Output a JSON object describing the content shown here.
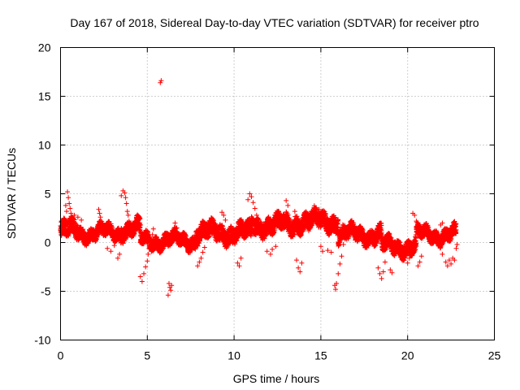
{
  "chart_data": {
    "type": "scatter",
    "title": "Day 167 of 2018, Sidereal Day-to-day VTEC variation (SDTVAR) for receiver ptro",
    "xlabel": "GPS time / hours",
    "ylabel": "SDTVAR / TECUs",
    "xlim": [
      0,
      25
    ],
    "ylim": [
      -10,
      20
    ],
    "xticks": [
      0,
      5,
      10,
      15,
      20,
      25
    ],
    "yticks": [
      -10,
      -5,
      0,
      5,
      10,
      15,
      20
    ],
    "xtick_labels": [
      "0",
      "5",
      "10",
      "15",
      "20",
      "25"
    ],
    "ytick_labels": [
      "-10",
      "-5",
      "0",
      "5",
      "10",
      "15",
      "20"
    ],
    "grid": true,
    "marker": "+",
    "series": [
      {
        "name": "SDTVAR",
        "color": "#ff0000",
        "bands": [
          {
            "x_start": 0.0,
            "x_end": 1.0,
            "center": 1.2,
            "spread": 1.6
          },
          {
            "x_start": 1.0,
            "x_end": 3.5,
            "center": 1.0,
            "spread": 1.2
          },
          {
            "x_start": 3.5,
            "x_end": 4.6,
            "center": 1.4,
            "spread": 1.4
          },
          {
            "x_start": 4.6,
            "x_end": 7.8,
            "center": 0.2,
            "spread": 1.2
          },
          {
            "x_start": 7.8,
            "x_end": 11.0,
            "center": 1.0,
            "spread": 1.6
          },
          {
            "x_start": 11.0,
            "x_end": 13.5,
            "center": 1.8,
            "spread": 1.6
          },
          {
            "x_start": 13.5,
            "x_end": 16.0,
            "center": 2.2,
            "spread": 1.6
          },
          {
            "x_start": 16.0,
            "x_end": 18.5,
            "center": 0.8,
            "spread": 1.4
          },
          {
            "x_start": 18.5,
            "x_end": 20.5,
            "center": -0.4,
            "spread": 1.4
          },
          {
            "x_start": 20.5,
            "x_end": 22.8,
            "center": 0.8,
            "spread": 1.2
          }
        ],
        "points": [
          [
            0.4,
            5.2
          ],
          [
            0.45,
            4.6
          ],
          [
            0.5,
            4.0
          ],
          [
            0.55,
            3.5
          ],
          [
            0.6,
            3.0
          ],
          [
            0.3,
            3.8
          ],
          [
            0.35,
            3.2
          ],
          [
            0.2,
            2.5
          ],
          [
            0.1,
            2.2
          ],
          [
            0.05,
            1.5
          ],
          [
            0.8,
            2.8
          ],
          [
            1.0,
            2.6
          ],
          [
            1.2,
            2.3
          ],
          [
            2.2,
            3.4
          ],
          [
            2.25,
            3.0
          ],
          [
            2.3,
            2.6
          ],
          [
            2.7,
            -0.6
          ],
          [
            2.9,
            -0.9
          ],
          [
            3.1,
            -0.3
          ],
          [
            3.3,
            -1.6
          ],
          [
            3.4,
            -1.2
          ],
          [
            3.5,
            4.8
          ],
          [
            3.6,
            5.3
          ],
          [
            3.7,
            5.1
          ],
          [
            3.75,
            4.6
          ],
          [
            3.8,
            4.0
          ],
          [
            3.85,
            3.2
          ],
          [
            3.9,
            2.8
          ],
          [
            3.95,
            2.2
          ],
          [
            4.6,
            -3.5
          ],
          [
            4.7,
            -4.0
          ],
          [
            4.8,
            -3.2
          ],
          [
            4.9,
            -2.5
          ],
          [
            5.0,
            -1.9
          ],
          [
            5.05,
            -1.2
          ],
          [
            5.1,
            -0.6
          ],
          [
            5.15,
            0.2
          ],
          [
            5.3,
            0.8
          ],
          [
            5.35,
            1.4
          ],
          [
            5.75,
            16.4
          ],
          [
            5.8,
            16.6
          ],
          [
            6.1,
            0.2
          ],
          [
            6.2,
            -0.4
          ],
          [
            6.25,
            -4.2
          ],
          [
            6.3,
            -4.6
          ],
          [
            6.35,
            -4.9
          ],
          [
            6.2,
            -5.4
          ],
          [
            6.4,
            -4.4
          ],
          [
            6.6,
            2.0
          ],
          [
            6.7,
            1.5
          ],
          [
            6.8,
            0.8
          ],
          [
            7.9,
            -2.4
          ],
          [
            8.0,
            -2.0
          ],
          [
            8.1,
            -1.6
          ],
          [
            8.2,
            -1.0
          ],
          [
            8.3,
            -0.5
          ],
          [
            9.3,
            3.1
          ],
          [
            9.4,
            2.8
          ],
          [
            9.5,
            2.3
          ],
          [
            10.2,
            -2.1
          ],
          [
            10.3,
            -2.4
          ],
          [
            10.4,
            -1.6
          ],
          [
            10.8,
            4.4
          ],
          [
            10.9,
            5.0
          ],
          [
            11.0,
            4.7
          ],
          [
            11.1,
            4.1
          ],
          [
            11.2,
            3.5
          ],
          [
            11.3,
            2.8
          ],
          [
            11.9,
            -0.9
          ],
          [
            12.1,
            -1.2
          ],
          [
            12.2,
            -0.7
          ],
          [
            12.4,
            -0.4
          ],
          [
            13.0,
            4.3
          ],
          [
            13.1,
            3.8
          ],
          [
            13.5,
            3.2
          ],
          [
            13.6,
            -1.8
          ],
          [
            13.7,
            -2.6
          ],
          [
            13.8,
            -3.0
          ],
          [
            13.9,
            -2.1
          ],
          [
            14.3,
            1.2
          ],
          [
            14.5,
            2.4
          ],
          [
            14.9,
            3.4
          ],
          [
            15.0,
            -0.4
          ],
          [
            15.1,
            -0.9
          ],
          [
            15.4,
            -0.8
          ],
          [
            15.6,
            -1.0
          ],
          [
            15.8,
            -4.4
          ],
          [
            15.85,
            -4.8
          ],
          [
            15.9,
            -4.2
          ],
          [
            16.0,
            -3.2
          ],
          [
            16.1,
            -2.2
          ],
          [
            16.2,
            -1.4
          ],
          [
            16.3,
            -0.2
          ],
          [
            16.5,
            0.6
          ],
          [
            18.3,
            -2.6
          ],
          [
            18.4,
            -3.2
          ],
          [
            18.5,
            -3.7
          ],
          [
            18.6,
            -3.0
          ],
          [
            18.7,
            -2.0
          ],
          [
            19.0,
            -2.8
          ],
          [
            19.1,
            -3.1
          ],
          [
            20.0,
            -2.1
          ],
          [
            20.1,
            -1.6
          ],
          [
            20.3,
            3.0
          ],
          [
            20.4,
            2.8
          ],
          [
            20.5,
            2.2
          ],
          [
            20.6,
            -2.4
          ],
          [
            20.7,
            -2.0
          ],
          [
            20.8,
            -1.4
          ],
          [
            21.9,
            1.8
          ],
          [
            22.0,
            2.0
          ],
          [
            22.0,
            -1.2
          ],
          [
            22.2,
            -2.0
          ],
          [
            22.3,
            -2.4
          ],
          [
            22.4,
            -1.8
          ],
          [
            22.5,
            -2.2
          ],
          [
            22.6,
            -1.6
          ],
          [
            22.7,
            -1.8
          ],
          [
            22.8,
            -0.6
          ],
          [
            22.85,
            -0.2
          ]
        ]
      }
    ]
  }
}
